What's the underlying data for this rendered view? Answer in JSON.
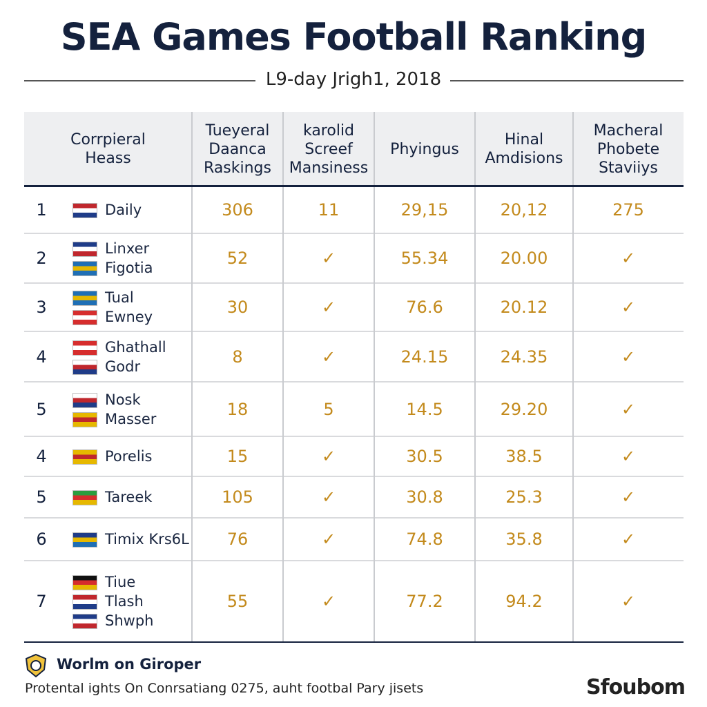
{
  "header": {
    "title": "SEA Games Football Ranking",
    "subtitle": "L9-day Jrigh1, 2018"
  },
  "table": {
    "columns": [
      [
        "Corrpieral",
        "Heass"
      ],
      [
        "Tueyeral",
        "Daanca",
        "Raskings"
      ],
      [
        "karolid",
        "Screef",
        "Mansiness"
      ],
      [
        "Phyingus"
      ],
      [
        "Hinal",
        "Amdisions"
      ],
      [
        "Macheral",
        "Phobete",
        "Staviiys"
      ]
    ],
    "rows": [
      {
        "rank": "1",
        "team": [
          "Daily"
        ],
        "cells": [
          "306",
          "11",
          "29,15",
          "20,12",
          "275"
        ]
      },
      {
        "rank": "2",
        "team": [
          "Linxer",
          "Figotia"
        ],
        "cells": [
          "52",
          "✓",
          "55.34",
          "20.00",
          "✓"
        ]
      },
      {
        "rank": "3",
        "team": [
          "Tual",
          "Ewney"
        ],
        "cells": [
          "30",
          "✓",
          "76.6",
          "20.12",
          "✓"
        ]
      },
      {
        "rank": "4",
        "team": [
          "Ghathall",
          "Godr"
        ],
        "cells": [
          "8",
          "✓",
          "24.15",
          "24.35",
          "✓"
        ]
      },
      {
        "rank": "5",
        "team": [
          "Nosk",
          "Masser"
        ],
        "cells": [
          "18",
          "5",
          "14.5",
          "29.20",
          "✓"
        ]
      },
      {
        "rank": "4",
        "team": [
          "Porelis"
        ],
        "cells": [
          "15",
          "✓",
          "30.5",
          "38.5",
          "✓"
        ]
      },
      {
        "rank": "5",
        "team": [
          "Tareek"
        ],
        "cells": [
          "105",
          "✓",
          "30.8",
          "25.3",
          "✓"
        ]
      },
      {
        "rank": "6",
        "team": [
          "Timix Krs6L"
        ],
        "cells": [
          "76",
          "✓",
          "74.8",
          "35.8",
          "✓"
        ]
      },
      {
        "rank": "7",
        "team": [
          "Tiue",
          "Tlash",
          "Shwph"
        ],
        "cells": [
          "55",
          "✓",
          "77.2",
          "94.2",
          "✓"
        ]
      }
    ]
  },
  "footer": {
    "heading": "Worlm on Giroper",
    "note": "Protental ights On Conrsatiang 0275, auht footbal Pary jisets",
    "brand": "Sfoubom"
  }
}
